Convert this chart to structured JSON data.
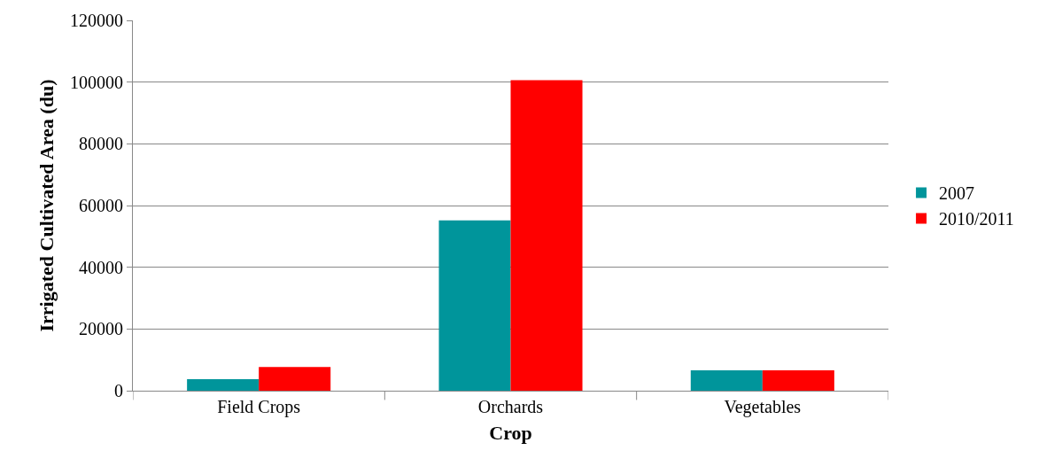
{
  "chart_data": {
    "type": "bar",
    "xlabel": "Crop",
    "ylabel": "Irrigated Cultivated Area (du)",
    "categories": [
      "Field Crops",
      "Orchards",
      "Vegetables"
    ],
    "series": [
      {
        "name": "2007",
        "color": "#00959b",
        "values": [
          3700,
          55200,
          6600
        ]
      },
      {
        "name": "2010/2011",
        "color": "#ff0000",
        "values": [
          7700,
          100600,
          6600
        ]
      }
    ],
    "ylim": [
      0,
      120000
    ],
    "yticks": [
      0,
      20000,
      40000,
      60000,
      80000,
      100000,
      120000
    ],
    "grid": "y",
    "legend": "right"
  }
}
